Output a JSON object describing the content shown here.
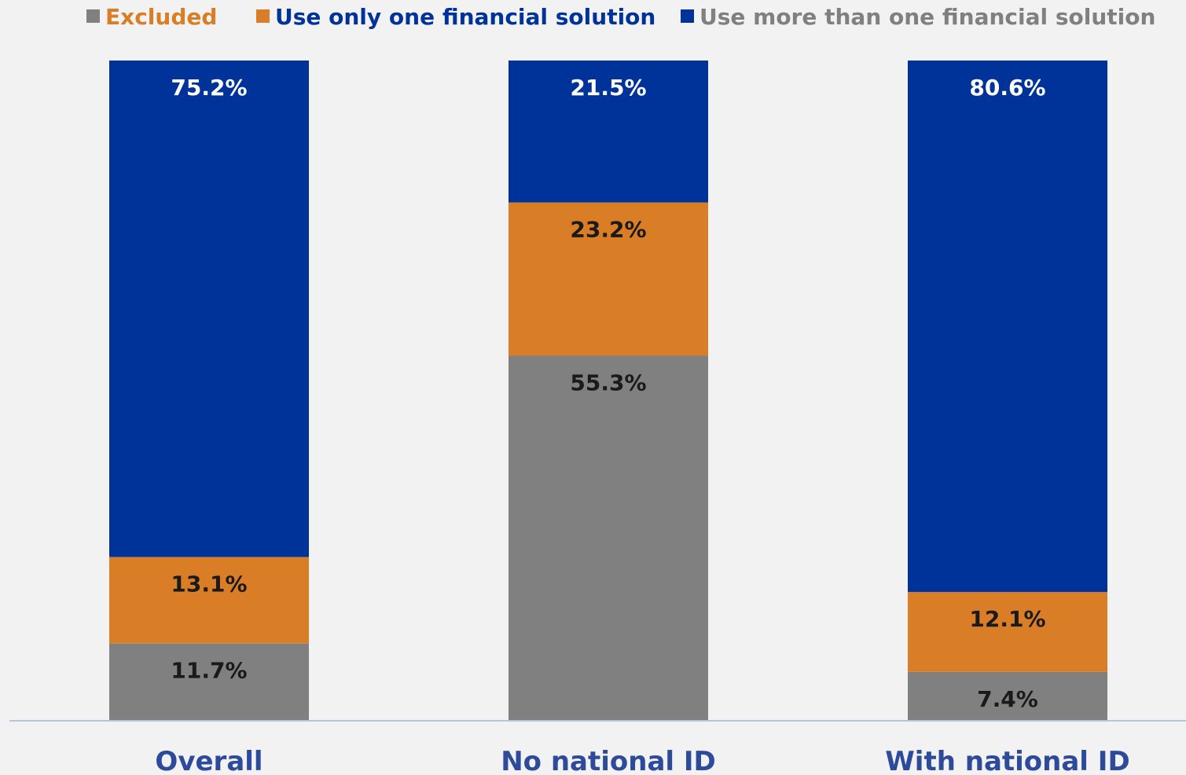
{
  "chart_data": {
    "type": "bar",
    "stacked": true,
    "normalized_percent": true,
    "title": "",
    "xlabel": "",
    "ylabel": "",
    "ylim": [
      0,
      100
    ],
    "grid": false,
    "legend_position": "top",
    "categories": [
      "Overall",
      "No national ID",
      "With national ID"
    ],
    "series": [
      {
        "name": "Excluded",
        "color": "#808080",
        "legend_text_color": "#d97e27",
        "label_color": "#1a1a1a",
        "values": [
          11.7,
          55.3,
          7.4
        ],
        "labels": [
          "11.7%",
          "55.3%",
          "7.4%"
        ]
      },
      {
        "name": "Use only one financial solution",
        "color": "#d97e27",
        "legend_text_color": "#003399",
        "label_color": "#1a1a1a",
        "values": [
          13.1,
          23.2,
          12.1
        ],
        "labels": [
          "13.1%",
          "23.2%",
          "12.1%"
        ]
      },
      {
        "name": "Use more than one financial solution",
        "color": "#003399",
        "legend_text_color": "#808080",
        "label_color": "#ffffff",
        "values": [
          75.2,
          21.5,
          80.6
        ],
        "labels": [
          "75.2%",
          "21.5%",
          "80.6%"
        ]
      }
    ],
    "category_label_color": "#2e4b9b",
    "axis_color": "#b4c4dc"
  }
}
